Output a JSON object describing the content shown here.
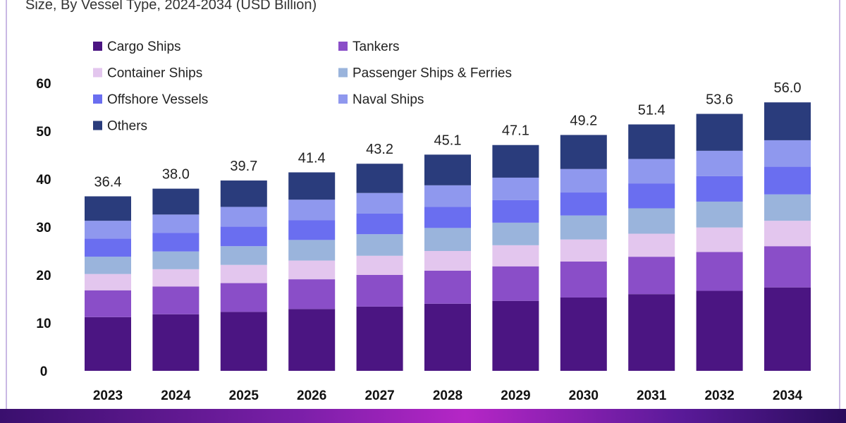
{
  "chart_data": {
    "type": "bar",
    "stacked": true,
    "title": "Size, By Vessel Type, 2024-2034 (USD Billion)",
    "categories": [
      "2023",
      "2024",
      "2025",
      "2026",
      "2027",
      "2028",
      "2029",
      "2030",
      "2031",
      "2032",
      "2034"
    ],
    "totals": [
      "36.4",
      "38.0",
      "39.7",
      "41.4",
      "43.2",
      "45.1",
      "47.1",
      "49.2",
      "51.4",
      "53.6",
      "56.0"
    ],
    "ylim": [
      0,
      60
    ],
    "yticks": [
      "0",
      "10",
      "20",
      "30",
      "40",
      "50",
      "60"
    ],
    "legend_position": "top-left",
    "series": [
      {
        "name": "Cargo Ships",
        "color": "#4b1582",
        "values": [
          11.2,
          11.8,
          12.3,
          12.9,
          13.4,
          14.0,
          14.6,
          15.3,
          16.0,
          16.7,
          17.4
        ]
      },
      {
        "name": "Tankers",
        "color": "#8a4ec8",
        "values": [
          5.6,
          5.8,
          6.0,
          6.2,
          6.6,
          6.9,
          7.2,
          7.5,
          7.8,
          8.1,
          8.6
        ]
      },
      {
        "name": "Container Ships",
        "color": "#e3c6ee",
        "values": [
          3.4,
          3.6,
          3.8,
          3.9,
          4.0,
          4.1,
          4.4,
          4.6,
          4.8,
          5.1,
          5.3
        ]
      },
      {
        "name": "Passenger Ships & Ferries",
        "color": "#9ab4dc",
        "values": [
          3.6,
          3.7,
          3.9,
          4.3,
          4.5,
          4.8,
          4.7,
          5.0,
          5.3,
          5.4,
          5.5
        ]
      },
      {
        "name": "Offshore Vessels",
        "color": "#6a6ef0",
        "values": [
          3.8,
          3.9,
          4.1,
          4.1,
          4.3,
          4.4,
          4.7,
          4.8,
          5.2,
          5.3,
          5.8
        ]
      },
      {
        "name": "Naval Ships",
        "color": "#8f98ee",
        "values": [
          3.7,
          3.8,
          4.1,
          4.3,
          4.3,
          4.5,
          4.7,
          4.9,
          5.1,
          5.3,
          5.5
        ]
      },
      {
        "name": "Others",
        "color": "#2a3c7c",
        "values": [
          5.1,
          5.4,
          5.5,
          5.7,
          6.1,
          6.4,
          6.8,
          7.1,
          7.2,
          7.7,
          7.9
        ]
      }
    ]
  }
}
